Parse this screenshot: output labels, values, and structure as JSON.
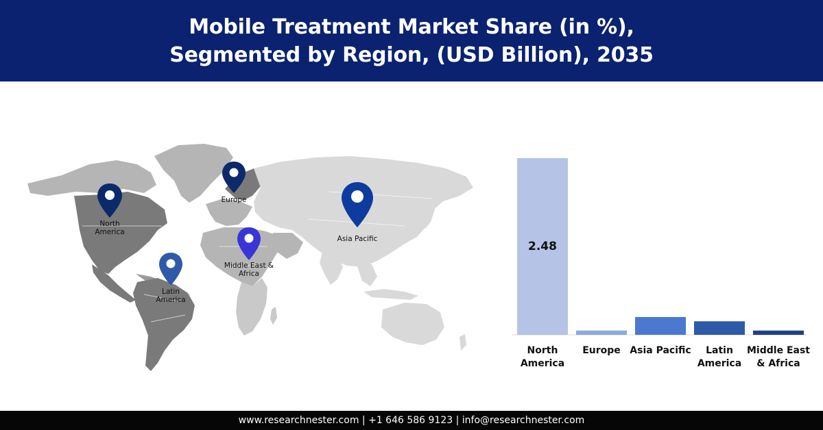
{
  "header": {
    "title_line1": "Mobile Treatment Market Share (in %),",
    "title_line2": "Segmented by Region, (USD Billion), 2035"
  },
  "map": {
    "pins": [
      {
        "id": "north-america",
        "label_line1": "North",
        "label_line2": "America",
        "color": "#0b2a6b"
      },
      {
        "id": "europe",
        "label_line1": "Europe",
        "label_line2": "",
        "color": "#0b2a6b"
      },
      {
        "id": "asia-pacific",
        "label_line1": "Asia Pacific",
        "label_line2": "",
        "color": "#0d3c9e"
      },
      {
        "id": "middle-east-africa",
        "label_line1": "Middle East &",
        "label_line2": "Africa",
        "color": "#3a35d6"
      },
      {
        "id": "latin-america",
        "label_line1": "Latin",
        "label_line2": "America",
        "color": "#2f5aa8"
      }
    ],
    "colors": {
      "dark_land": "#7a7a7a",
      "mid_land": "#b5b5b5",
      "light_land": "#d9d9d9"
    }
  },
  "chart_data": {
    "type": "bar",
    "categories": [
      [
        "North",
        "America"
      ],
      [
        "Europe"
      ],
      [
        "Asia Pacific"
      ],
      [
        "Latin",
        "America"
      ],
      [
        "Middle East",
        "& Africa"
      ]
    ],
    "values": [
      2.48,
      0.06,
      0.25,
      0.19,
      0.06
    ],
    "data_labels": [
      "2.48",
      "",
      "",
      "",
      ""
    ],
    "colors": [
      "#b4c3e6",
      "#8fa9dc",
      "#4a79cf",
      "#2f5aa8",
      "#1f3f8a"
    ],
    "ylim": [
      0,
      2.48
    ],
    "grid": false,
    "legend": "none"
  },
  "footer": {
    "website": "www.researchnester.com",
    "phone": "+1 646 586 9123",
    "email": "info@researchnester.com",
    "separator": " | "
  }
}
